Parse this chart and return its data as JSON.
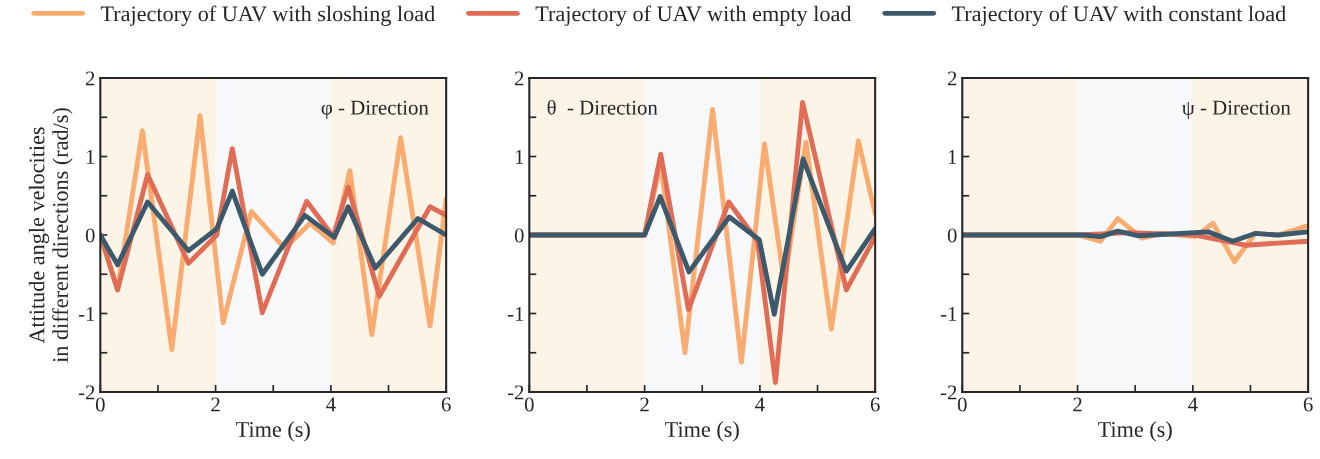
{
  "chart_data": [
    {
      "type": "line",
      "ylabel": "Attitude angle velocities\nin different directions (rad/s)",
      "xlabel": "Time (s)",
      "annotations": [
        "φ - Direction"
      ],
      "legend": "top",
      "grid": false,
      "marker": "none",
      "line_style": "solid",
      "xlim": [
        0,
        6
      ],
      "ylim": [
        -2,
        2
      ],
      "xticks": [
        0,
        {
          "value": 1,
          "label": null
        },
        2,
        {
          "value": 3,
          "label": null
        },
        4,
        {
          "value": 5,
          "label": null
        },
        6
      ],
      "yticks": [
        -2,
        {
          "value": -1.5,
          "label": null
        },
        -1,
        {
          "value": -0.5,
          "label": null
        },
        0,
        {
          "value": 0.5,
          "label": null
        },
        1,
        {
          "value": 1.5,
          "label": null
        },
        2
      ],
      "bands": [
        {
          "axis": "x",
          "from": 0,
          "to": 2,
          "color": "#fdf4e8"
        },
        {
          "axis": "x",
          "from": 2,
          "to": 4,
          "color": "#f7f8fa"
        },
        {
          "axis": "x",
          "from": 4,
          "to": 6,
          "color": "#fdf4e8"
        }
      ],
      "series": [
        {
          "name": "Trajectory of UAV with sloshing load",
          "color": "#f9ab70",
          "x": [
            0,
            0.3,
            0.73,
            1.24,
            1.73,
            2.13,
            2.62,
            3.2,
            3.64,
            4.04,
            4.33,
            4.71,
            5.21,
            5.72,
            6
          ],
          "values": [
            0,
            -0.7,
            1.33,
            -1.46,
            1.52,
            -1.12,
            0.3,
            -0.17,
            0.15,
            -0.1,
            0.82,
            -1.27,
            1.24,
            -1.16,
            0.46
          ]
        },
        {
          "name": "Trajectory of UAV with empty load",
          "color": "#e06c55",
          "x": [
            0,
            0.3,
            0.82,
            1.53,
            2.02,
            2.29,
            2.81,
            3.58,
            4.04,
            4.3,
            4.84,
            5.72,
            6
          ],
          "values": [
            0,
            -0.7,
            0.77,
            -0.36,
            0,
            1.1,
            -0.99,
            0.43,
            -0.02,
            0.61,
            -0.78,
            0.36,
            0.25
          ]
        },
        {
          "name": "Trajectory of UAV with constant load",
          "color": "#3d5a6c",
          "x": [
            0,
            0.3,
            0.82,
            1.53,
            2.02,
            2.29,
            2.81,
            3.55,
            4.06,
            4.3,
            4.77,
            5.51,
            6
          ],
          "values": [
            0,
            -0.38,
            0.42,
            -0.2,
            0.08,
            0.56,
            -0.5,
            0.25,
            -0.03,
            0.36,
            -0.42,
            0.21,
            0
          ]
        }
      ]
    },
    {
      "type": "line",
      "xlabel": "Time (s)",
      "annotations": [
        "θ  - Direction"
      ],
      "grid": false,
      "marker": "none",
      "line_style": "solid",
      "xlim": [
        0,
        6
      ],
      "ylim": [
        -2,
        2
      ],
      "xticks": [
        0,
        {
          "value": 1,
          "label": null
        },
        2,
        {
          "value": 3,
          "label": null
        },
        4,
        {
          "value": 5,
          "label": null
        },
        6
      ],
      "yticks": [
        -2,
        {
          "value": -1.5,
          "label": null
        },
        -1,
        {
          "value": -0.5,
          "label": null
        },
        0,
        {
          "value": 0.5,
          "label": null
        },
        1,
        {
          "value": 1.5,
          "label": null
        },
        2
      ],
      "bands": [
        {
          "axis": "x",
          "from": 0,
          "to": 2,
          "color": "#fdf4e8"
        },
        {
          "axis": "x",
          "from": 2,
          "to": 4,
          "color": "#f7f8fa"
        },
        {
          "axis": "x",
          "from": 4,
          "to": 6,
          "color": "#fdf4e8"
        }
      ],
      "series": [
        {
          "color": "#f9ab70",
          "x": [
            0,
            2,
            2.28,
            2.7,
            3.18,
            3.68,
            4.08,
            4.42,
            4.8,
            5.24,
            5.71,
            6
          ],
          "values": [
            0,
            0,
            0.91,
            -1.5,
            1.6,
            -1.62,
            1.16,
            -0.6,
            1.18,
            -1.2,
            1.2,
            0.27
          ]
        },
        {
          "color": "#e06c55",
          "x": [
            0,
            2,
            2.28,
            2.76,
            3.46,
            3.96,
            4.27,
            4.74,
            5.5,
            6
          ],
          "values": [
            0,
            0,
            1.03,
            -0.95,
            0.42,
            -0.08,
            -1.88,
            1.69,
            -0.7,
            -0.02
          ]
        },
        {
          "color": "#3d5a6c",
          "x": [
            0,
            2,
            2.27,
            2.77,
            3.47,
            3.99,
            4.25,
            4.75,
            5.5,
            6
          ],
          "values": [
            0,
            0,
            0.49,
            -0.47,
            0.23,
            -0.06,
            -1.01,
            0.97,
            -0.46,
            0.08
          ]
        }
      ]
    },
    {
      "type": "line",
      "xlabel": "Time (s)",
      "annotations": [
        "ψ - Direction"
      ],
      "grid": false,
      "marker": "none",
      "line_style": "solid",
      "xlim": [
        0,
        6
      ],
      "ylim": [
        -2,
        2
      ],
      "xticks": [
        0,
        {
          "value": 1,
          "label": null
        },
        2,
        {
          "value": 3,
          "label": null
        },
        4,
        {
          "value": 5,
          "label": null
        },
        6
      ],
      "yticks": [
        -2,
        {
          "value": -1.5,
          "label": null
        },
        -1,
        {
          "value": -0.5,
          "label": null
        },
        0,
        {
          "value": 0.5,
          "label": null
        },
        1,
        {
          "value": 1.5,
          "label": null
        },
        2
      ],
      "bands": [
        {
          "axis": "x",
          "from": 0,
          "to": 2,
          "color": "#fdf4e8"
        },
        {
          "axis": "x",
          "from": 2,
          "to": 4,
          "color": "#f7f8fa"
        },
        {
          "axis": "x",
          "from": 4,
          "to": 6,
          "color": "#fdf4e8"
        }
      ],
      "series": [
        {
          "color": "#f9ab70",
          "x": [
            0,
            2,
            2.4,
            2.7,
            3.12,
            3.46,
            4.04,
            4.35,
            4.72,
            5.08,
            5.48,
            6
          ],
          "values": [
            0,
            0,
            -0.08,
            0.21,
            -0.04,
            0.02,
            -0.02,
            0.15,
            -0.34,
            0.02,
            0,
            0.12
          ]
        },
        {
          "color": "#e06c55",
          "x": [
            0,
            2,
            2.9,
            4.04,
            4.91,
            6
          ],
          "values": [
            0,
            0,
            0.03,
            0,
            -0.13,
            -0.08
          ]
        },
        {
          "color": "#3d5a6c",
          "x": [
            0,
            2.1,
            2.4,
            2.7,
            3.06,
            4.27,
            4.69,
            5.08,
            5.48,
            6
          ],
          "values": [
            0,
            0,
            -0.02,
            0.05,
            -0.01,
            0.04,
            -0.08,
            0.02,
            0,
            0.04
          ]
        }
      ]
    }
  ]
}
